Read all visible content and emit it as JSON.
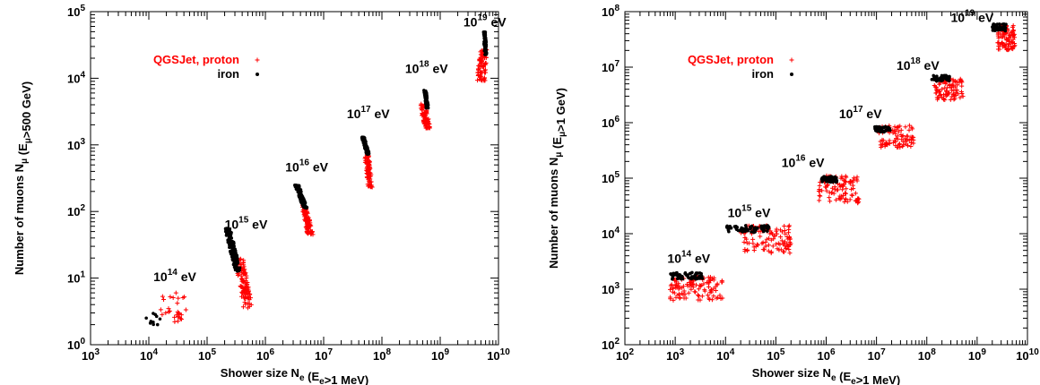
{
  "chart_data": [
    {
      "type": "scatter",
      "xlabel": "Shower size N_e (E_e>1 MeV)",
      "ylabel": "Number of muons N_μ (E_μ>500 GeV)",
      "xscale": "log",
      "yscale": "log",
      "xlim": [
        1000,
        10000000000
      ],
      "ylim": [
        1,
        100000
      ],
      "x_ticks": [
        "10^3",
        "10^4",
        "10^5",
        "10^6",
        "10^7",
        "10^8",
        "10^9",
        "10^10"
      ],
      "y_ticks": [
        "10^0",
        "10^1",
        "10^2",
        "10^3",
        "10^4",
        "10^5"
      ],
      "legend": {
        "position": "top-left"
      },
      "series": [
        {
          "name": "QGSJet, proton",
          "color": "#ff0000",
          "marker": "plus"
        },
        {
          "name": "iron",
          "color": "#000000",
          "marker": "dot"
        }
      ],
      "energy_labels": [
        {
          "base": "10",
          "exp": "14",
          "unit": "eV",
          "x": 12000,
          "y": 9
        },
        {
          "base": "10",
          "exp": "15",
          "unit": "eV",
          "x": 200000,
          "y": 55
        },
        {
          "base": "10",
          "exp": "16",
          "unit": "eV",
          "x": 2200000,
          "y": 400
        },
        {
          "base": "10",
          "exp": "17",
          "unit": "eV",
          "x": 25000000,
          "y": 2500
        },
        {
          "base": "10",
          "exp": "18",
          "unit": "eV",
          "x": 250000000,
          "y": 12000
        },
        {
          "base": "10",
          "exp": "19",
          "unit": "eV",
          "x": 2500000000,
          "y": 60000
        }
      ],
      "clusters": [
        {
          "energy": "10^14 eV",
          "iron": {
            "log_x": [
              3.95,
              4.25
            ],
            "log_y": [
              0.3,
              0.48
            ],
            "n": 10
          },
          "proton": {
            "log_x": [
              4.15,
              4.65
            ],
            "log_y": [
              0.3,
              0.78
            ],
            "n": 28
          }
        },
        {
          "energy": "10^15 eV",
          "iron": {
            "log_x_top": [
              5.3,
              5.4
            ],
            "log_x_bottom": [
              5.48,
              5.58
            ],
            "log_y": [
              1.1,
              1.75
            ],
            "n": 120
          },
          "proton": {
            "log_x_top": [
              5.48,
              5.62
            ],
            "log_x_bottom": [
              5.62,
              5.78
            ],
            "log_y": [
              0.55,
              1.3
            ],
            "n": 110
          }
        },
        {
          "energy": "10^16 eV",
          "iron": {
            "log_x_top": [
              6.5,
              6.58
            ],
            "log_x_bottom": [
              6.65,
              6.72
            ],
            "log_y": [
              2.05,
              2.4
            ],
            "n": 100
          },
          "proton": {
            "log_x_top": [
              6.62,
              6.7
            ],
            "log_x_bottom": [
              6.72,
              6.82
            ],
            "log_y": [
              1.65,
              2.1
            ],
            "n": 100
          }
        },
        {
          "energy": "10^17 eV",
          "iron": {
            "log_x_top": [
              7.65,
              7.7
            ],
            "log_x_bottom": [
              7.74,
              7.79
            ],
            "log_y": [
              2.85,
              3.12
            ],
            "n": 90
          },
          "proton": {
            "log_x_top": [
              7.7,
              7.78
            ],
            "log_x_bottom": [
              7.76,
              7.84
            ],
            "log_y": [
              2.35,
              2.85
            ],
            "n": 90
          }
        },
        {
          "energy": "10^18 eV",
          "iron": {
            "log_x_top": [
              8.72,
              8.76
            ],
            "log_x_bottom": [
              8.76,
              8.8
            ],
            "log_y": [
              3.55,
              3.82
            ],
            "n": 80
          },
          "proton": {
            "log_x_top": [
              8.64,
              8.74
            ],
            "log_x_bottom": [
              8.74,
              8.84
            ],
            "log_y": [
              3.25,
              3.62
            ],
            "n": 80
          }
        },
        {
          "energy": "10^19 eV",
          "iron": {
            "log_x_top": [
              9.74,
              9.78
            ],
            "log_x_bottom": [
              9.76,
              9.8
            ],
            "log_y": [
              4.35,
              4.7
            ],
            "n": 80
          },
          "proton": {
            "log_x_top": [
              9.7,
              9.8
            ],
            "log_x_bottom": [
              9.62,
              9.78
            ],
            "log_y": [
              3.95,
              4.45
            ],
            "n": 80
          }
        }
      ]
    },
    {
      "type": "scatter",
      "xlabel": "Shower size N_e (E_e>1 MeV)",
      "ylabel": "Number of muons N_μ (E_μ>1 GeV)",
      "xscale": "log",
      "yscale": "log",
      "xlim": [
        100,
        10000000000
      ],
      "ylim": [
        100,
        100000000
      ],
      "x_ticks": [
        "10^2",
        "10^3",
        "10^4",
        "10^5",
        "10^6",
        "10^7",
        "10^8",
        "10^9",
        "10^10"
      ],
      "y_ticks": [
        "10^2",
        "10^3",
        "10^4",
        "10^5",
        "10^6",
        "10^7",
        "10^8"
      ],
      "legend": {
        "position": "top-left"
      },
      "series": [
        {
          "name": "QGSJet, proton",
          "color": "#ff0000",
          "marker": "plus"
        },
        {
          "name": "iron",
          "color": "#000000",
          "marker": "dot"
        }
      ],
      "energy_labels": [
        {
          "base": "10",
          "exp": "14",
          "unit": "eV",
          "x": 700,
          "y": 3000
        },
        {
          "base": "10",
          "exp": "15",
          "unit": "eV",
          "x": 11000,
          "y": 20000
        },
        {
          "base": "10",
          "exp": "16",
          "unit": "eV",
          "x": 130000,
          "y": 160000
        },
        {
          "base": "10",
          "exp": "17",
          "unit": "eV",
          "x": 1800000,
          "y": 1200000
        },
        {
          "base": "10",
          "exp": "18",
          "unit": "eV",
          "x": 25000000,
          "y": 9000000
        },
        {
          "base": "10",
          "exp": "19",
          "unit": "eV",
          "x": 300000000,
          "y": 65000000
        }
      ],
      "clusters": [
        {
          "energy": "10^14 eV",
          "iron": {
            "log_x": [
              2.9,
              3.55
            ],
            "log_y": [
              3.18,
              3.3
            ],
            "n": 60
          },
          "proton": {
            "log_x": [
              2.9,
              3.95
            ],
            "log_y": [
              2.8,
              3.22
            ],
            "n": 110
          }
        },
        {
          "energy": "10^15 eV",
          "iron": {
            "log_x": [
              4.0,
              4.88
            ],
            "log_y": [
              4.02,
              4.15
            ],
            "n": 70
          },
          "proton": {
            "log_x": [
              4.3,
              5.3
            ],
            "log_y": [
              3.65,
              4.15
            ],
            "n": 110
          }
        },
        {
          "energy": "10^16 eV",
          "iron": {
            "log_x": [
              5.9,
              6.22
            ],
            "log_y": [
              4.93,
              5.03
            ],
            "n": 50
          },
          "proton": {
            "log_x": [
              5.85,
              6.65
            ],
            "log_y": [
              4.55,
              5.05
            ],
            "n": 100
          }
        },
        {
          "energy": "10^17 eV",
          "iron": {
            "log_x": [
              6.95,
              7.28
            ],
            "log_y": [
              5.83,
              5.93
            ],
            "n": 45
          },
          "proton": {
            "log_x": [
              7.05,
              7.75
            ],
            "log_y": [
              5.55,
              5.95
            ],
            "n": 90
          }
        },
        {
          "energy": "10^18 eV",
          "iron": {
            "log_x": [
              8.1,
              8.45
            ],
            "log_y": [
              6.75,
              6.85
            ],
            "n": 45
          },
          "proton": {
            "log_x": [
              8.15,
              8.72
            ],
            "log_y": [
              6.4,
              6.8
            ],
            "n": 90
          }
        },
        {
          "energy": "10^19 eV",
          "iron": {
            "log_x": [
              9.3,
              9.58
            ],
            "log_y": [
              7.65,
              7.78
            ],
            "n": 45
          },
          "proton": {
            "log_x": [
              9.4,
              9.75
            ],
            "log_y": [
              7.3,
              7.75
            ],
            "n": 90
          }
        }
      ]
    }
  ]
}
